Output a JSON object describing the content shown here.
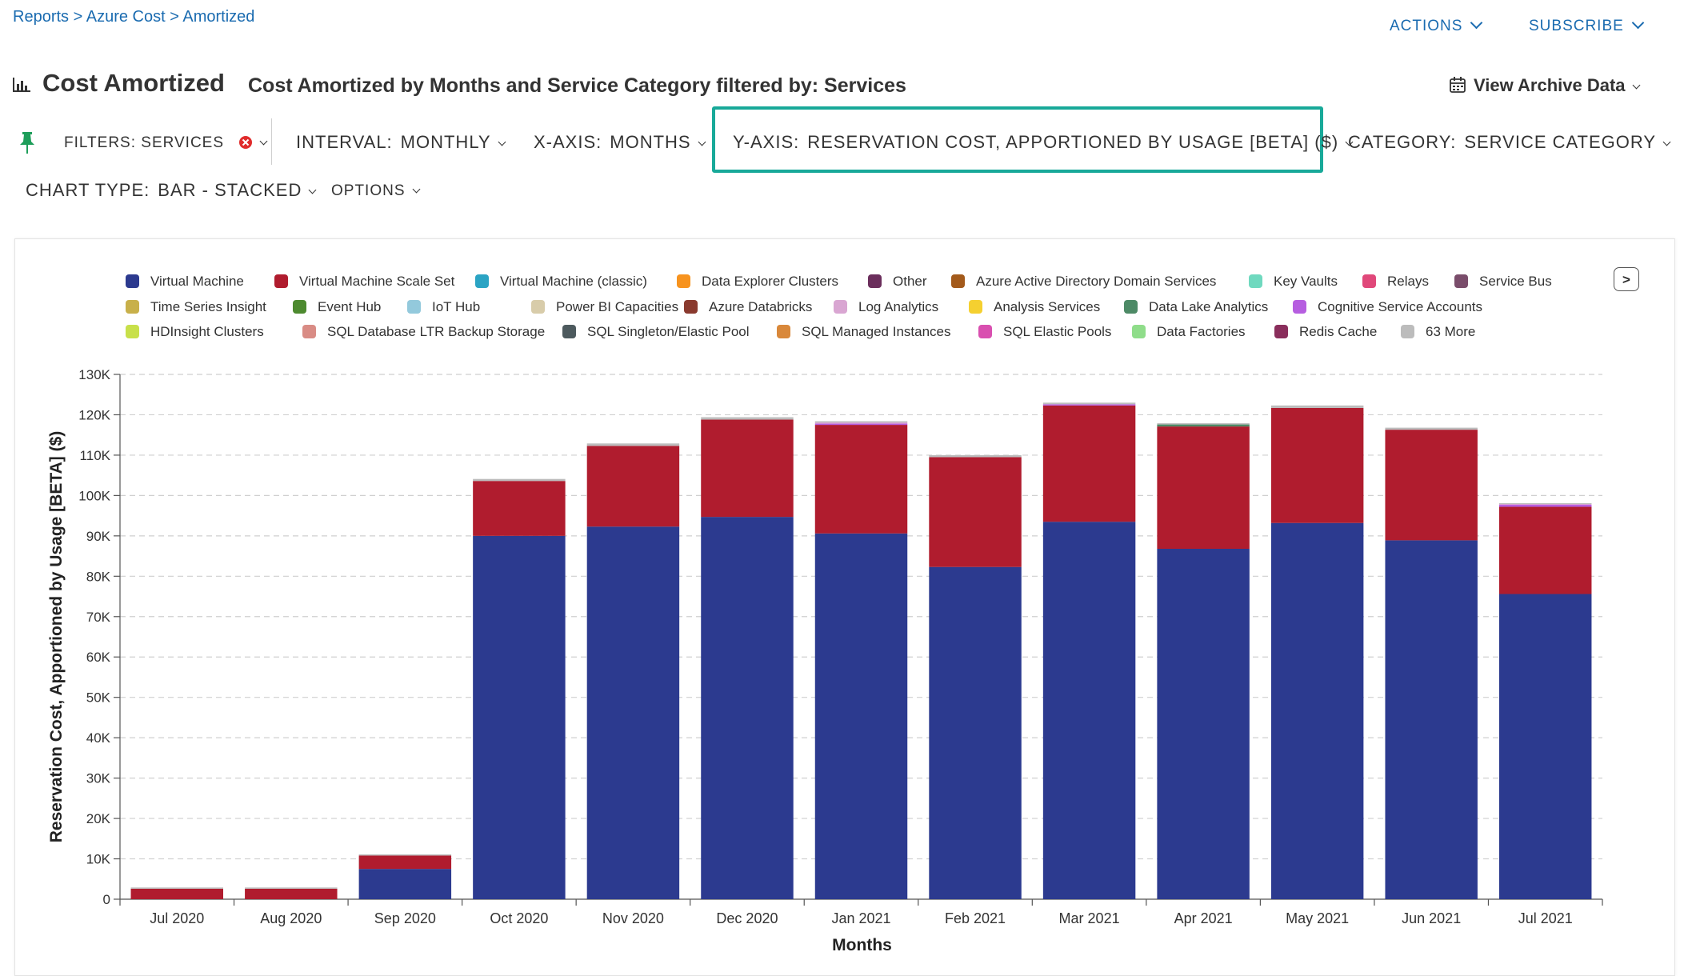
{
  "breadcrumb": {
    "reports": "Reports",
    "sep1": " > ",
    "azure": "Azure Cost",
    "sep2": " > ",
    "current": "Amortized"
  },
  "header": {
    "actions_label": "ACTIONS",
    "subscribe_label": "SUBSCRIBE",
    "title": "Cost Amortized",
    "subtitle": "Cost Amortized by Months and Service Category filtered by: Services",
    "archive_label": "View Archive Data"
  },
  "controls": {
    "filters_label": "FILTERS: SERVICES",
    "interval_label": "INTERVAL:",
    "interval_value": "MONTHLY",
    "xaxis_label": "X-AXIS:",
    "xaxis_value": "MONTHS",
    "yaxis_label": "Y-AXIS:",
    "yaxis_value": "RESERVATION COST, APPORTIONED BY USAGE [BETA] ($)",
    "category_label": "CATEGORY:",
    "category_value": "SERVICE CATEGORY",
    "charttype_label": "CHART TYPE:",
    "charttype_value": "BAR - STACKED",
    "options_label": "OPTIONS"
  },
  "colors": {
    "accent": "#1a6bb0",
    "highlight": "#18a999",
    "filter_clear": "#e02b2b",
    "pin": "#1e9e5a"
  },
  "icons": {
    "chart": "bar-chart-icon",
    "archive": "calendar-icon",
    "pin": "pin-icon",
    "clear": "clear-filter-icon"
  },
  "legend": {
    "next_label": ">",
    "rows": [
      [
        {
          "name": "Virtual Machine",
          "color": "#2c3a8f"
        },
        {
          "name": "Virtual Machine Scale Set",
          "color": "#b01c2e"
        },
        {
          "name": "Virtual Machine (classic)",
          "color": "#2ba4c4"
        },
        {
          "name": "Data Explorer Clusters",
          "color": "#f7931e"
        },
        {
          "name": "Other",
          "color": "#6b2e5c"
        },
        {
          "name": "Azure Active Directory Domain Services",
          "color": "#a35a1b"
        },
        {
          "name": "Key Vaults",
          "color": "#6fd9bf"
        },
        {
          "name": "Relays",
          "color": "#e0487a"
        },
        {
          "name": "Service Bus",
          "color": "#7a4d6b"
        }
      ],
      [
        {
          "name": "Time Series Insight",
          "color": "#c8b04a"
        },
        {
          "name": "Event Hub",
          "color": "#4d8a2f"
        },
        {
          "name": "IoT Hub",
          "color": "#93c9dc"
        },
        {
          "name": "Power BI Capacities",
          "color": "#d8ccaa"
        },
        {
          "name": "Azure Databricks",
          "color": "#8a3a2e"
        },
        {
          "name": "Log Analytics",
          "color": "#d9a6d2"
        },
        {
          "name": "Analysis Services",
          "color": "#f5d030"
        },
        {
          "name": "Data Lake Analytics",
          "color": "#4d8a66"
        },
        {
          "name": "Cognitive Service Accounts",
          "color": "#b65ee0"
        }
      ],
      [
        {
          "name": "HDInsight Clusters",
          "color": "#c8e04a"
        },
        {
          "name": "SQL Database LTR Backup Storage",
          "color": "#d98c85"
        },
        {
          "name": "SQL Singleton/Elastic Pool",
          "color": "#4d5a5e"
        },
        {
          "name": "SQL Managed Instances",
          "color": "#d9883a"
        },
        {
          "name": "SQL Elastic Pools",
          "color": "#d94fb0"
        },
        {
          "name": "Data Factories",
          "color": "#8fdd8a"
        },
        {
          "name": "Redis Cache",
          "color": "#8a2e5c"
        },
        {
          "name": "63 More",
          "color": "#bcbcbc"
        }
      ]
    ]
  },
  "chart_data": {
    "type": "bar",
    "stacked": true,
    "xlabel": "Months",
    "ylabel": "Reservation Cost, Apportioned by Usage [BETA] ($)",
    "ylim": [
      0,
      130000
    ],
    "yticks": [
      0,
      10000,
      20000,
      30000,
      40000,
      50000,
      60000,
      70000,
      80000,
      90000,
      100000,
      110000,
      120000,
      130000
    ],
    "ytick_labels": [
      "0",
      "10K",
      "20K",
      "30K",
      "40K",
      "50K",
      "60K",
      "70K",
      "80K",
      "90K",
      "100K",
      "110K",
      "120K",
      "130K"
    ],
    "grid": true,
    "legend_position": "top",
    "categories": [
      "Jul 2020",
      "Aug 2020",
      "Sep 2020",
      "Oct 2020",
      "Nov 2020",
      "Dec 2020",
      "Jan 2021",
      "Feb 2021",
      "Mar 2021",
      "Apr 2021",
      "May 2021",
      "Jun 2021",
      "Jul 2021"
    ],
    "series": [
      {
        "name": "Virtual Machine",
        "color": "#2c3a8f",
        "values": [
          0,
          0,
          7500,
          90000,
          92300,
          94700,
          90600,
          82300,
          93500,
          86800,
          93200,
          88900,
          75600
        ]
      },
      {
        "name": "Virtual Machine Scale Set",
        "color": "#b01c2e",
        "values": [
          2600,
          2600,
          3300,
          13600,
          20000,
          24100,
          26900,
          27200,
          28800,
          30300,
          28500,
          27400,
          21600
        ]
      },
      {
        "name": "Cognitive Service Accounts",
        "color": "#b65ee0",
        "values": [
          0,
          0,
          0,
          0,
          0,
          0,
          300,
          0,
          300,
          0,
          0,
          0,
          500
        ]
      },
      {
        "name": "Log Analytics",
        "color": "#d9a6d2",
        "values": [
          0,
          0,
          0,
          0,
          0,
          0,
          300,
          0,
          0,
          0,
          0,
          0,
          200
        ]
      },
      {
        "name": "Data Lake Analytics",
        "color": "#4d8a66",
        "values": [
          0,
          0,
          0,
          0,
          0,
          0,
          0,
          0,
          0,
          500,
          0,
          0,
          0
        ]
      },
      {
        "name": "63 More",
        "color": "#bcbcbc",
        "values": [
          300,
          300,
          300,
          500,
          600,
          600,
          300,
          500,
          400,
          300,
          600,
          500,
          200
        ]
      }
    ]
  }
}
